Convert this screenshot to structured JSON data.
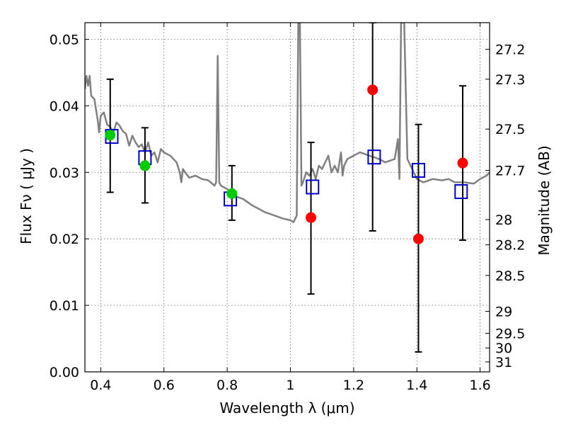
{
  "chart_data": {
    "type": "scatter",
    "title": "",
    "xlabel": "Wavelength  λ (μm)",
    "ylabel": "Flux  Fν  ( μJy )",
    "ylabel_right": "Magnitude (AB)",
    "xlim": [
      0.35,
      1.63
    ],
    "ylim": [
      0.0,
      0.0525
    ],
    "grid": true,
    "x_ticks": [
      0.4,
      0.6,
      0.8,
      1.0,
      1.2,
      1.4,
      1.6
    ],
    "x_tick_labels": [
      "0.4",
      "0.6",
      "0.8",
      "1",
      "1.2",
      "1.4",
      "1.6"
    ],
    "y_ticks": [
      0.0,
      0.01,
      0.02,
      0.03,
      0.04,
      0.05
    ],
    "y_tick_labels": [
      "0.00",
      "0.01",
      "0.02",
      "0.03",
      "0.04",
      "0.05"
    ],
    "right_ticks": [
      {
        "label": "27.2",
        "flux": 0.0485
      },
      {
        "label": "27.3",
        "flux": 0.044
      },
      {
        "label": "27.5",
        "flux": 0.0365
      },
      {
        "label": "27.7",
        "flux": 0.0303
      },
      {
        "label": "28",
        "flux": 0.0229
      },
      {
        "label": "28.2",
        "flux": 0.0191
      },
      {
        "label": "28.5",
        "flux": 0.0145
      },
      {
        "label": "29",
        "flux": 0.0091
      },
      {
        "label": "29.5",
        "flux": 0.0058
      },
      {
        "label": "30",
        "flux": 0.0036
      },
      {
        "label": "31",
        "flux": 0.0015
      }
    ],
    "series": [
      {
        "kind": "line",
        "color": "#808080",
        "x": [
          0.35,
          0.355,
          0.36,
          0.365,
          0.37,
          0.38,
          0.39,
          0.395,
          0.4,
          0.41,
          0.42,
          0.43,
          0.44,
          0.45,
          0.46,
          0.47,
          0.48,
          0.49,
          0.5,
          0.51,
          0.52,
          0.53,
          0.54,
          0.55,
          0.56,
          0.57,
          0.58,
          0.59,
          0.6,
          0.62,
          0.64,
          0.65,
          0.655,
          0.66,
          0.67,
          0.68,
          0.7,
          0.72,
          0.74,
          0.76,
          0.765,
          0.77,
          0.775,
          0.78,
          0.8,
          0.82,
          0.85,
          0.88,
          0.9,
          0.92,
          0.95,
          0.98,
          1.0,
          1.01,
          1.02,
          1.025,
          1.03,
          1.035,
          1.04,
          1.05,
          1.06,
          1.07,
          1.08,
          1.09,
          1.1,
          1.12,
          1.13,
          1.14,
          1.15,
          1.16,
          1.165,
          1.17,
          1.18,
          1.2,
          1.22,
          1.25,
          1.28,
          1.3,
          1.33,
          1.34,
          1.345,
          1.35,
          1.36,
          1.37,
          1.38,
          1.385,
          1.39,
          1.4,
          1.42,
          1.45,
          1.48,
          1.5,
          1.52,
          1.55,
          1.58,
          1.6,
          1.62,
          1.63
        ],
        "y": [
          0.0425,
          0.0445,
          0.043,
          0.0445,
          0.0415,
          0.041,
          0.038,
          0.036,
          0.0385,
          0.039,
          0.0372,
          0.0368,
          0.036,
          0.0375,
          0.037,
          0.0362,
          0.0358,
          0.034,
          0.0355,
          0.0345,
          0.0338,
          0.0342,
          0.033,
          0.0345,
          0.0325,
          0.033,
          0.0315,
          0.0335,
          0.033,
          0.0325,
          0.0315,
          0.03,
          0.0285,
          0.0305,
          0.0298,
          0.0292,
          0.0295,
          0.029,
          0.0288,
          0.028,
          0.0285,
          0.0475,
          0.0285,
          0.028,
          0.0275,
          0.0265,
          0.026,
          0.025,
          0.0245,
          0.024,
          0.0235,
          0.023,
          0.0228,
          0.0225,
          0.0235,
          0.0525,
          0.0525,
          0.028,
          0.0285,
          0.03,
          0.0295,
          0.0305,
          0.029,
          0.031,
          0.0305,
          0.0325,
          0.03,
          0.031,
          0.03,
          0.033,
          0.0295,
          0.031,
          0.032,
          0.0325,
          0.033,
          0.0325,
          0.032,
          0.0315,
          0.032,
          0.035,
          0.029,
          0.0525,
          0.0525,
          0.032,
          0.031,
          0.0305,
          0.03,
          0.029,
          0.0285,
          0.029,
          0.0288,
          0.029,
          0.0285,
          0.0285,
          0.0283,
          0.029,
          0.0295,
          0.03
        ]
      },
      {
        "kind": "errorbar",
        "color": "#000000",
        "points": [
          {
            "x": 0.43,
            "low": 0.027,
            "high": 0.044
          },
          {
            "x": 0.54,
            "low": 0.0254,
            "high": 0.0367
          },
          {
            "x": 0.815,
            "low": 0.0228,
            "high": 0.031
          },
          {
            "x": 1.065,
            "low": 0.0117,
            "high": 0.0345
          },
          {
            "x": 1.26,
            "low": 0.0212,
            "high": 0.0525
          },
          {
            "x": 1.405,
            "low": 0.003,
            "high": 0.0372
          },
          {
            "x": 1.545,
            "low": 0.0198,
            "high": 0.043
          }
        ]
      },
      {
        "kind": "square",
        "color": "#0000cc",
        "x": [
          0.435,
          0.54,
          0.81,
          1.07,
          1.265,
          1.405,
          1.54
        ],
        "y": [
          0.0354,
          0.0322,
          0.026,
          0.0278,
          0.0323,
          0.0303,
          0.0271
        ]
      },
      {
        "kind": "circle",
        "color": "#00cc00",
        "x": [
          0.43,
          0.54,
          0.815
        ],
        "y": [
          0.0356,
          0.031,
          0.0268
        ]
      },
      {
        "kind": "circle",
        "color": "#ff0000",
        "x": [
          1.065,
          1.26,
          1.405,
          1.545
        ],
        "y": [
          0.0232,
          0.0424,
          0.02,
          0.0314
        ]
      }
    ]
  }
}
